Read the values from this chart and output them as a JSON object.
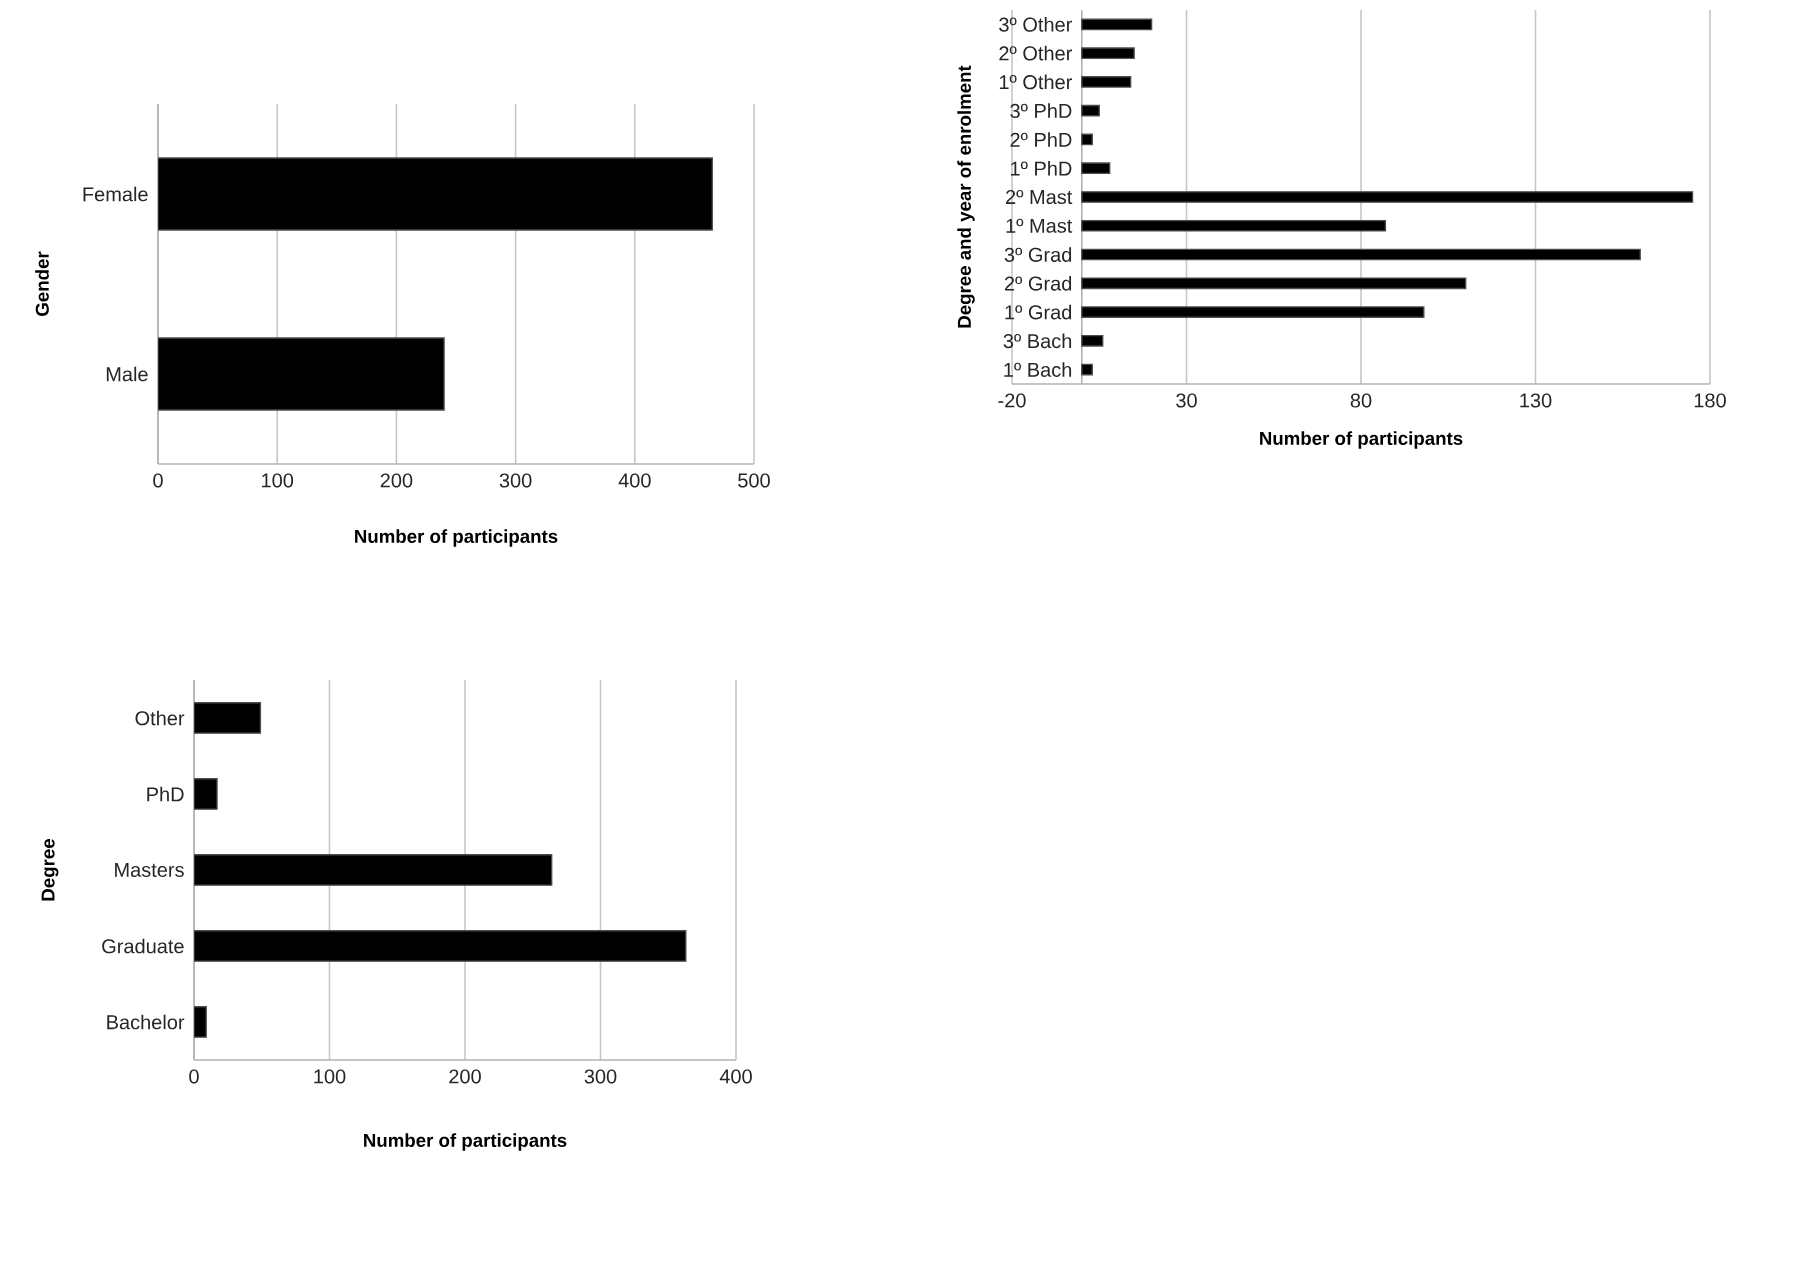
{
  "chart_data": [
    {
      "type": "bar",
      "orientation": "horizontal",
      "xlabel": "Number of participants",
      "ylabel": "Gender",
      "categories": [
        "Female",
        "Male"
      ],
      "values": [
        465,
        240
      ],
      "color": "#000000",
      "xlim": [
        0,
        500
      ],
      "xticks": [
        0,
        100,
        200,
        300,
        400,
        500
      ],
      "grid": "x"
    },
    {
      "type": "bar",
      "orientation": "horizontal",
      "xlabel": "Number of participants",
      "ylabel": "Degree and year of enrolment",
      "categories": [
        "3º Other",
        "2º Other",
        "1º Other",
        "3º PhD",
        "2º PhD",
        "1º PhD",
        "2º Mast",
        "1º Mast",
        "3º Grad",
        "2º Grad",
        "1º Grad",
        "3º Bach",
        "1º Bach"
      ],
      "values": [
        20,
        15,
        14,
        5,
        3,
        8,
        175,
        87,
        160,
        110,
        98,
        6,
        3
      ],
      "color": "#000000",
      "xlim": [
        -20,
        180
      ],
      "xticks": [
        -20,
        30,
        80,
        130,
        180
      ],
      "grid": "x"
    },
    {
      "type": "bar",
      "orientation": "horizontal",
      "xlabel": "Number of participants",
      "ylabel": "Degree",
      "categories": [
        "Other",
        "PhD",
        "Masters",
        "Graduate",
        "Bachelor"
      ],
      "values": [
        49,
        17,
        264,
        363,
        9
      ],
      "color": "#000000",
      "xlim": [
        0,
        400
      ],
      "xticks": [
        0,
        100,
        200,
        300,
        400
      ],
      "grid": "x"
    }
  ]
}
